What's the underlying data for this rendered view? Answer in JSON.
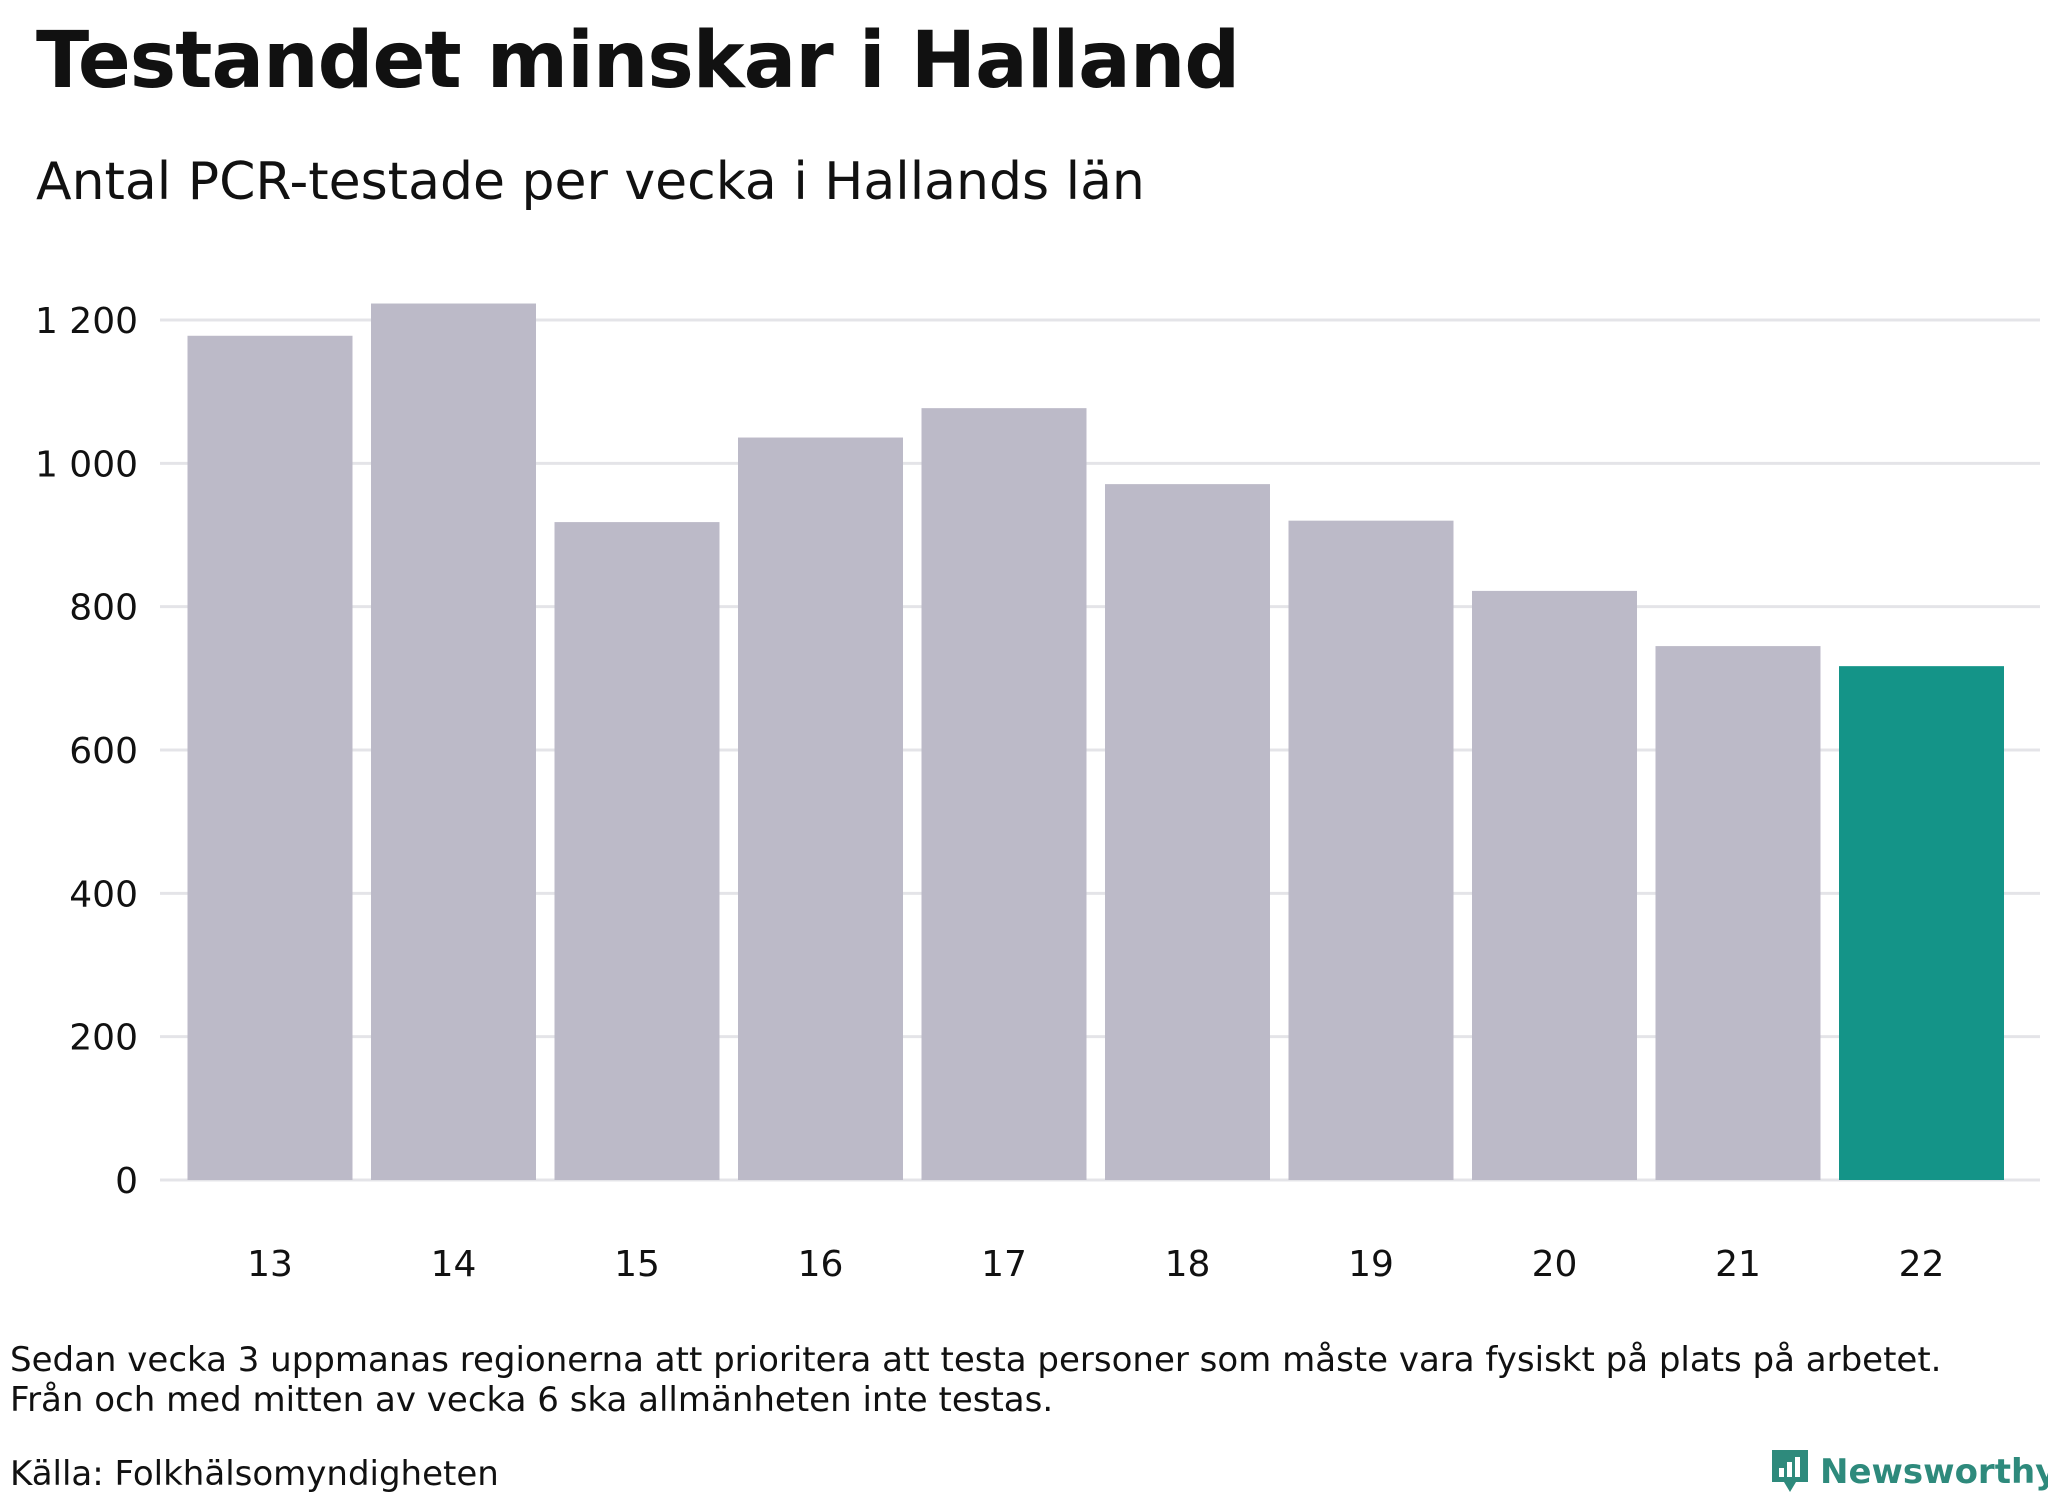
{
  "title": "Testandet minskar i Halland",
  "subtitle": "Antal PCR-testade per vecka i Hallands län",
  "note_lines": [
    "Sedan vecka 3 uppmanas regionerna att prioritera att testa personer som måste vara fysiskt på plats på arbetet.",
    "Från och med mitten av vecka 6 ska allmänheten inte testas."
  ],
  "source": "Källa: Folkhälsomyndigheten",
  "brand": {
    "name": "Newsworthy",
    "icon": "newsworthy-logo-icon"
  },
  "colors": {
    "bar": "#bcbac8",
    "highlight": "#149488",
    "grid": "#e4e4e8",
    "brand": "#2e8a7c"
  },
  "chart_data": {
    "type": "bar",
    "categories": [
      "13",
      "14",
      "15",
      "16",
      "17",
      "18",
      "19",
      "20",
      "21",
      "22"
    ],
    "values": [
      1178,
      1223,
      918,
      1036,
      1077,
      971,
      920,
      822,
      745,
      717
    ],
    "highlight_index": 9,
    "ylim": [
      0,
      1200
    ],
    "yticks": [
      0,
      200,
      400,
      600,
      800,
      1000,
      1200
    ],
    "ytick_labels": [
      "0",
      "200",
      "400",
      "600",
      "800",
      "1 000",
      "1 200"
    ],
    "xlabel": "",
    "ylabel": "",
    "grid": true,
    "legend": "none"
  }
}
